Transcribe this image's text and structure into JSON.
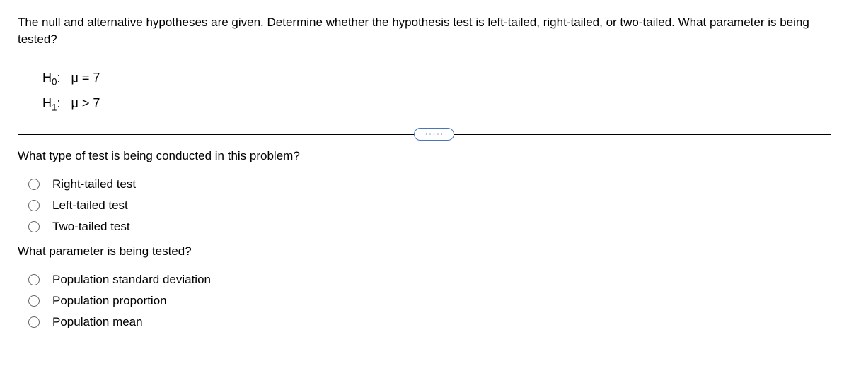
{
  "prompt": "The null and alternative hypotheses are given. Determine whether the hypothesis test is left-tailed, right-tailed, or two-tailed. What parameter is being tested?",
  "hypotheses": {
    "h0_label": "H",
    "h0_sub": "0",
    "h0_colon": ":",
    "h0_expr": "μ = 7",
    "h1_label": "H",
    "h1_sub": "1",
    "h1_colon": ":",
    "h1_expr": "μ > 7"
  },
  "q1": {
    "text": "What type of test is being conducted in this problem?",
    "options": [
      "Right-tailed test",
      "Left-tailed test",
      "Two-tailed test"
    ]
  },
  "q2": {
    "text": "What parameter is being tested?",
    "options": [
      "Population standard deviation",
      "Population proportion",
      "Population mean"
    ]
  },
  "pill_dots": "•••••"
}
